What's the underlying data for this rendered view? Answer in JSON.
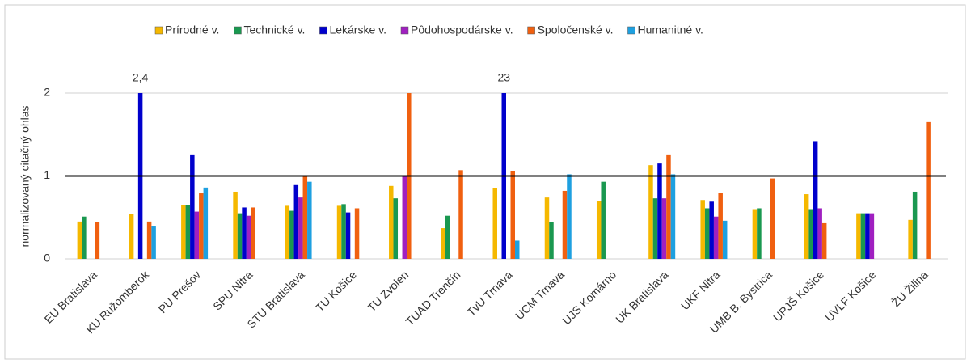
{
  "chart_data": {
    "type": "bar",
    "y_label": "normalizovaný citačný ohlas",
    "categories": [
      "EU Bratislava",
      "KU Ružomberok",
      "PU Prešov",
      "SPU Nitra",
      "STU Bratislava",
      "TU Košice",
      "TU Zvolen",
      "TUAD Trenčín",
      "TvU Trnava",
      "UCM Trnava",
      "UJS Komárno",
      "UK Bratislava",
      "UKF Nitra",
      "UMB B. Bystrica",
      "UPJŠ Košice",
      "UVLF Košice",
      "ŽU Žilina"
    ],
    "series": [
      {
        "name": "Prírodné v.",
        "color": "#f5b800",
        "values": [
          0.45,
          0.54,
          0.65,
          0.81,
          0.64,
          0.64,
          0.88,
          0.37,
          0.85,
          0.74,
          0.7,
          1.13,
          0.71,
          0.6,
          0.78,
          0.55,
          0.47
        ]
      },
      {
        "name": "Technické v.",
        "color": "#1a9850",
        "values": [
          0.51,
          null,
          0.65,
          0.55,
          0.58,
          0.66,
          0.73,
          0.52,
          null,
          0.44,
          0.93,
          0.73,
          0.61,
          0.61,
          0.6,
          0.55,
          0.81
        ]
      },
      {
        "name": "Lekárske v.",
        "color": "#0000cc",
        "values": [
          null,
          2.4,
          1.25,
          0.62,
          0.89,
          0.56,
          null,
          null,
          23,
          null,
          null,
          1.15,
          0.69,
          null,
          1.42,
          0.55,
          null
        ],
        "value_labels": [
          null,
          "2,4",
          null,
          null,
          null,
          null,
          null,
          null,
          "23",
          null,
          null,
          null,
          null,
          null,
          null,
          null,
          null
        ]
      },
      {
        "name": "Pôdohospodárske v.",
        "color": "#a020c0",
        "values": [
          null,
          null,
          0.57,
          0.52,
          0.74,
          null,
          1.0,
          null,
          null,
          null,
          null,
          0.73,
          0.51,
          null,
          0.61,
          0.55,
          null
        ]
      },
      {
        "name": "Spoločenské v.",
        "color": "#f06010",
        "values": [
          0.44,
          0.45,
          0.79,
          0.62,
          1.0,
          0.61,
          2.0,
          1.07,
          1.06,
          0.82,
          null,
          1.25,
          0.8,
          0.97,
          0.43,
          null,
          1.65
        ]
      },
      {
        "name": "Humanitné v.",
        "color": "#1ea0e0",
        "values": [
          null,
          0.39,
          0.86,
          null,
          0.93,
          null,
          null,
          null,
          0.22,
          1.02,
          null,
          1.02,
          0.46,
          null,
          null,
          null,
          null
        ]
      }
    ],
    "ylim": [
      0,
      2
    ],
    "yticks": [
      0,
      1,
      2
    ],
    "grid": true,
    "reference_line": 1
  }
}
